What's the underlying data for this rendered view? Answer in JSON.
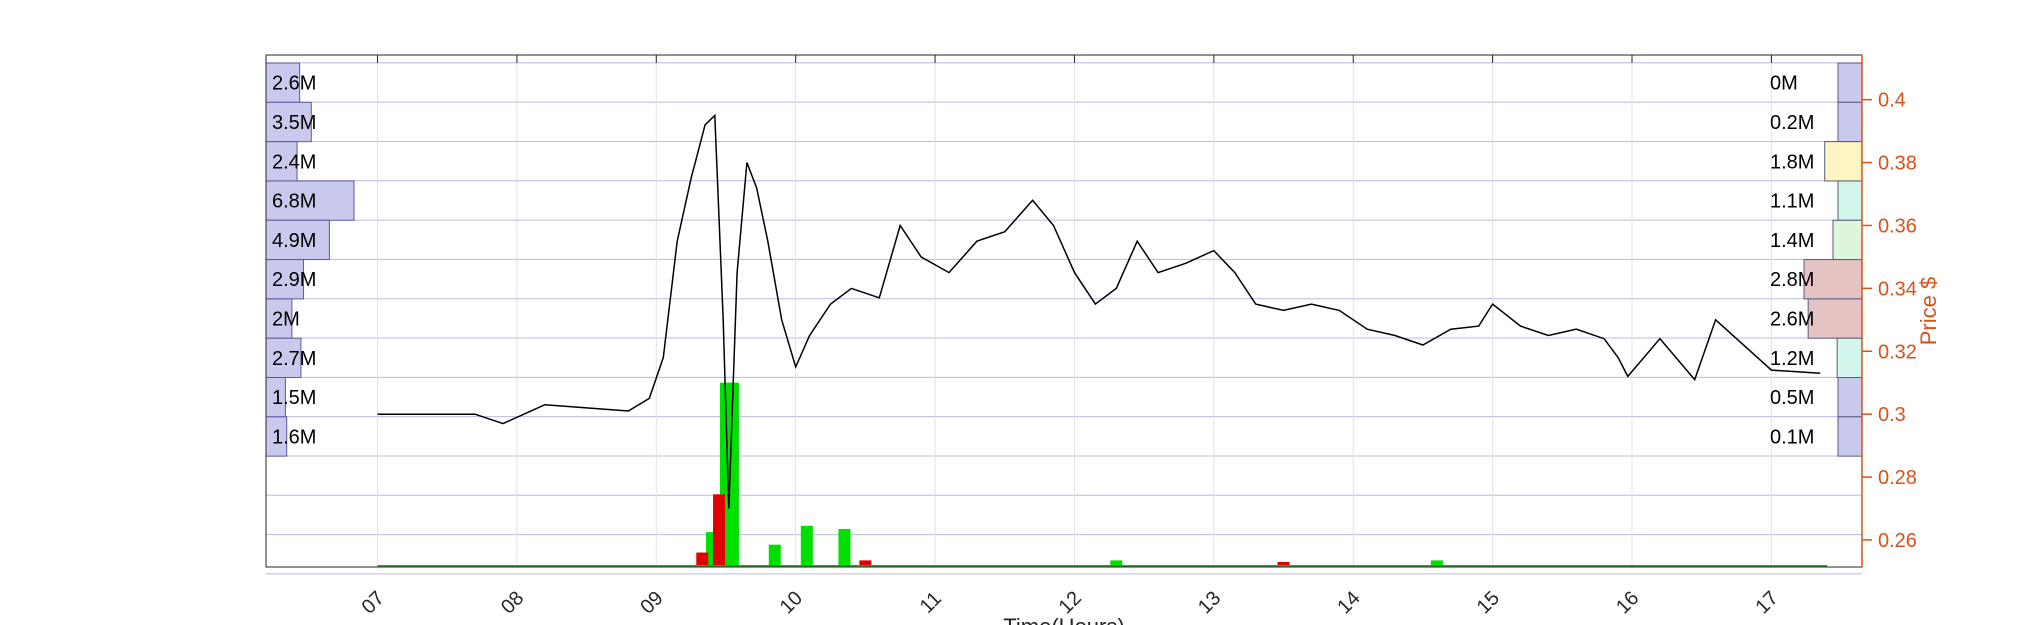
{
  "chart_data": {
    "type": "line",
    "title": "",
    "xlabel": "Time(Hours)",
    "ylabel": "Price $",
    "x_ticks": [
      "07",
      "08",
      "09",
      "10",
      "11",
      "12",
      "13",
      "14",
      "15",
      "16",
      "17"
    ],
    "x_range": [
      6.2,
      17.65
    ],
    "y_ticks": [
      0.26,
      0.28,
      0.3,
      0.32,
      0.34,
      0.36,
      0.38,
      0.4
    ],
    "y_tick_labels": [
      "0.26",
      "0.28",
      "0.3",
      "0.32",
      "0.34",
      "0.36",
      "0.38",
      "0.4"
    ],
    "y_range": [
      0.2514,
      0.4142
    ],
    "grid": true,
    "price_axis_color": "#d95319",
    "price_series": [
      [
        7.0,
        0.3
      ],
      [
        7.7,
        0.3
      ],
      [
        7.9,
        0.297
      ],
      [
        8.05,
        0.3
      ],
      [
        8.2,
        0.303
      ],
      [
        8.5,
        0.302
      ],
      [
        8.8,
        0.301
      ],
      [
        8.95,
        0.305
      ],
      [
        9.05,
        0.318
      ],
      [
        9.15,
        0.355
      ],
      [
        9.25,
        0.375
      ],
      [
        9.35,
        0.392
      ],
      [
        9.42,
        0.395
      ],
      [
        9.48,
        0.33
      ],
      [
        9.52,
        0.27
      ],
      [
        9.58,
        0.345
      ],
      [
        9.65,
        0.38
      ],
      [
        9.72,
        0.372
      ],
      [
        9.8,
        0.355
      ],
      [
        9.9,
        0.33
      ],
      [
        10.0,
        0.315
      ],
      [
        10.1,
        0.325
      ],
      [
        10.25,
        0.335
      ],
      [
        10.4,
        0.34
      ],
      [
        10.6,
        0.337
      ],
      [
        10.75,
        0.36
      ],
      [
        10.9,
        0.35
      ],
      [
        11.1,
        0.345
      ],
      [
        11.3,
        0.355
      ],
      [
        11.5,
        0.358
      ],
      [
        11.7,
        0.368
      ],
      [
        11.85,
        0.36
      ],
      [
        12.0,
        0.345
      ],
      [
        12.15,
        0.335
      ],
      [
        12.3,
        0.34
      ],
      [
        12.45,
        0.355
      ],
      [
        12.6,
        0.345
      ],
      [
        12.8,
        0.348
      ],
      [
        13.0,
        0.352
      ],
      [
        13.15,
        0.345
      ],
      [
        13.3,
        0.335
      ],
      [
        13.5,
        0.333
      ],
      [
        13.7,
        0.335
      ],
      [
        13.9,
        0.333
      ],
      [
        14.1,
        0.327
      ],
      [
        14.3,
        0.325
      ],
      [
        14.5,
        0.322
      ],
      [
        14.7,
        0.327
      ],
      [
        14.9,
        0.328
      ],
      [
        15.0,
        0.335
      ],
      [
        15.2,
        0.328
      ],
      [
        15.4,
        0.325
      ],
      [
        15.6,
        0.327
      ],
      [
        15.8,
        0.324
      ],
      [
        15.9,
        0.318
      ],
      [
        15.97,
        0.312
      ],
      [
        16.2,
        0.324
      ],
      [
        16.45,
        0.311
      ],
      [
        16.6,
        0.33
      ],
      [
        17.0,
        0.314
      ],
      [
        17.35,
        0.313
      ]
    ],
    "volume_series": [
      {
        "name": "up",
        "color": "#00e000",
        "bars": [
          [
            9.5,
            0.31
          ],
          [
            9.55,
            0.31
          ],
          [
            9.4,
            0.2625
          ],
          [
            10.08,
            0.2645
          ],
          [
            10.35,
            0.2635
          ],
          [
            9.85,
            0.2585
          ],
          [
            12.3,
            0.2535
          ],
          [
            14.6,
            0.2535
          ]
        ]
      },
      {
        "name": "down",
        "color": "#e00000",
        "bars": [
          [
            9.45,
            0.2745
          ],
          [
            10.5,
            0.2535
          ],
          [
            13.5,
            0.253
          ],
          [
            9.33,
            0.256
          ]
        ]
      }
    ],
    "volume_profile_left": [
      {
        "price": 0.4054,
        "label": "2.6M",
        "value_m": 2.6
      },
      {
        "price": 0.3929,
        "label": "3.5M",
        "value_m": 3.5
      },
      {
        "price": 0.3804,
        "label": "2.4M",
        "value_m": 2.4
      },
      {
        "price": 0.3679,
        "label": "6.8M",
        "value_m": 6.8
      },
      {
        "price": 0.3554,
        "label": "4.9M",
        "value_m": 4.9
      },
      {
        "price": 0.3429,
        "label": "2.9M",
        "value_m": 2.9
      },
      {
        "price": 0.3304,
        "label": "2M",
        "value_m": 2.0
      },
      {
        "price": 0.3179,
        "label": "2.7M",
        "value_m": 2.7
      },
      {
        "price": 0.3054,
        "label": "1.5M",
        "value_m": 1.5
      },
      {
        "price": 0.2929,
        "label": "1.6M",
        "value_m": 1.6
      }
    ],
    "volume_profile_right": [
      {
        "price": 0.4054,
        "label": "0M",
        "value_m": 0.0,
        "color": "#c9c9ee"
      },
      {
        "price": 0.3929,
        "label": "0.2M",
        "value_m": 0.2,
        "color": "#c9c9ee"
      },
      {
        "price": 0.3804,
        "label": "1.8M",
        "value_m": 1.8,
        "color": "#fff5c3"
      },
      {
        "price": 0.3679,
        "label": "1.1M",
        "value_m": 1.1,
        "color": "#d2f5ec"
      },
      {
        "price": 0.3554,
        "label": "1.4M",
        "value_m": 1.4,
        "color": "#dcf5dc"
      },
      {
        "price": 0.3429,
        "label": "2.8M",
        "value_m": 2.8,
        "color": "#e6c3c3"
      },
      {
        "price": 0.3304,
        "label": "2.6M",
        "value_m": 2.6,
        "color": "#e6c3c3"
      },
      {
        "price": 0.3179,
        "label": "1.2M",
        "value_m": 1.2,
        "color": "#d2f5ec"
      },
      {
        "price": 0.3054,
        "label": "0.5M",
        "value_m": 0.5,
        "color": "#c9c9ee"
      },
      {
        "price": 0.2929,
        "label": "0.1M",
        "value_m": 0.1,
        "color": "#c9c9ee"
      }
    ]
  }
}
